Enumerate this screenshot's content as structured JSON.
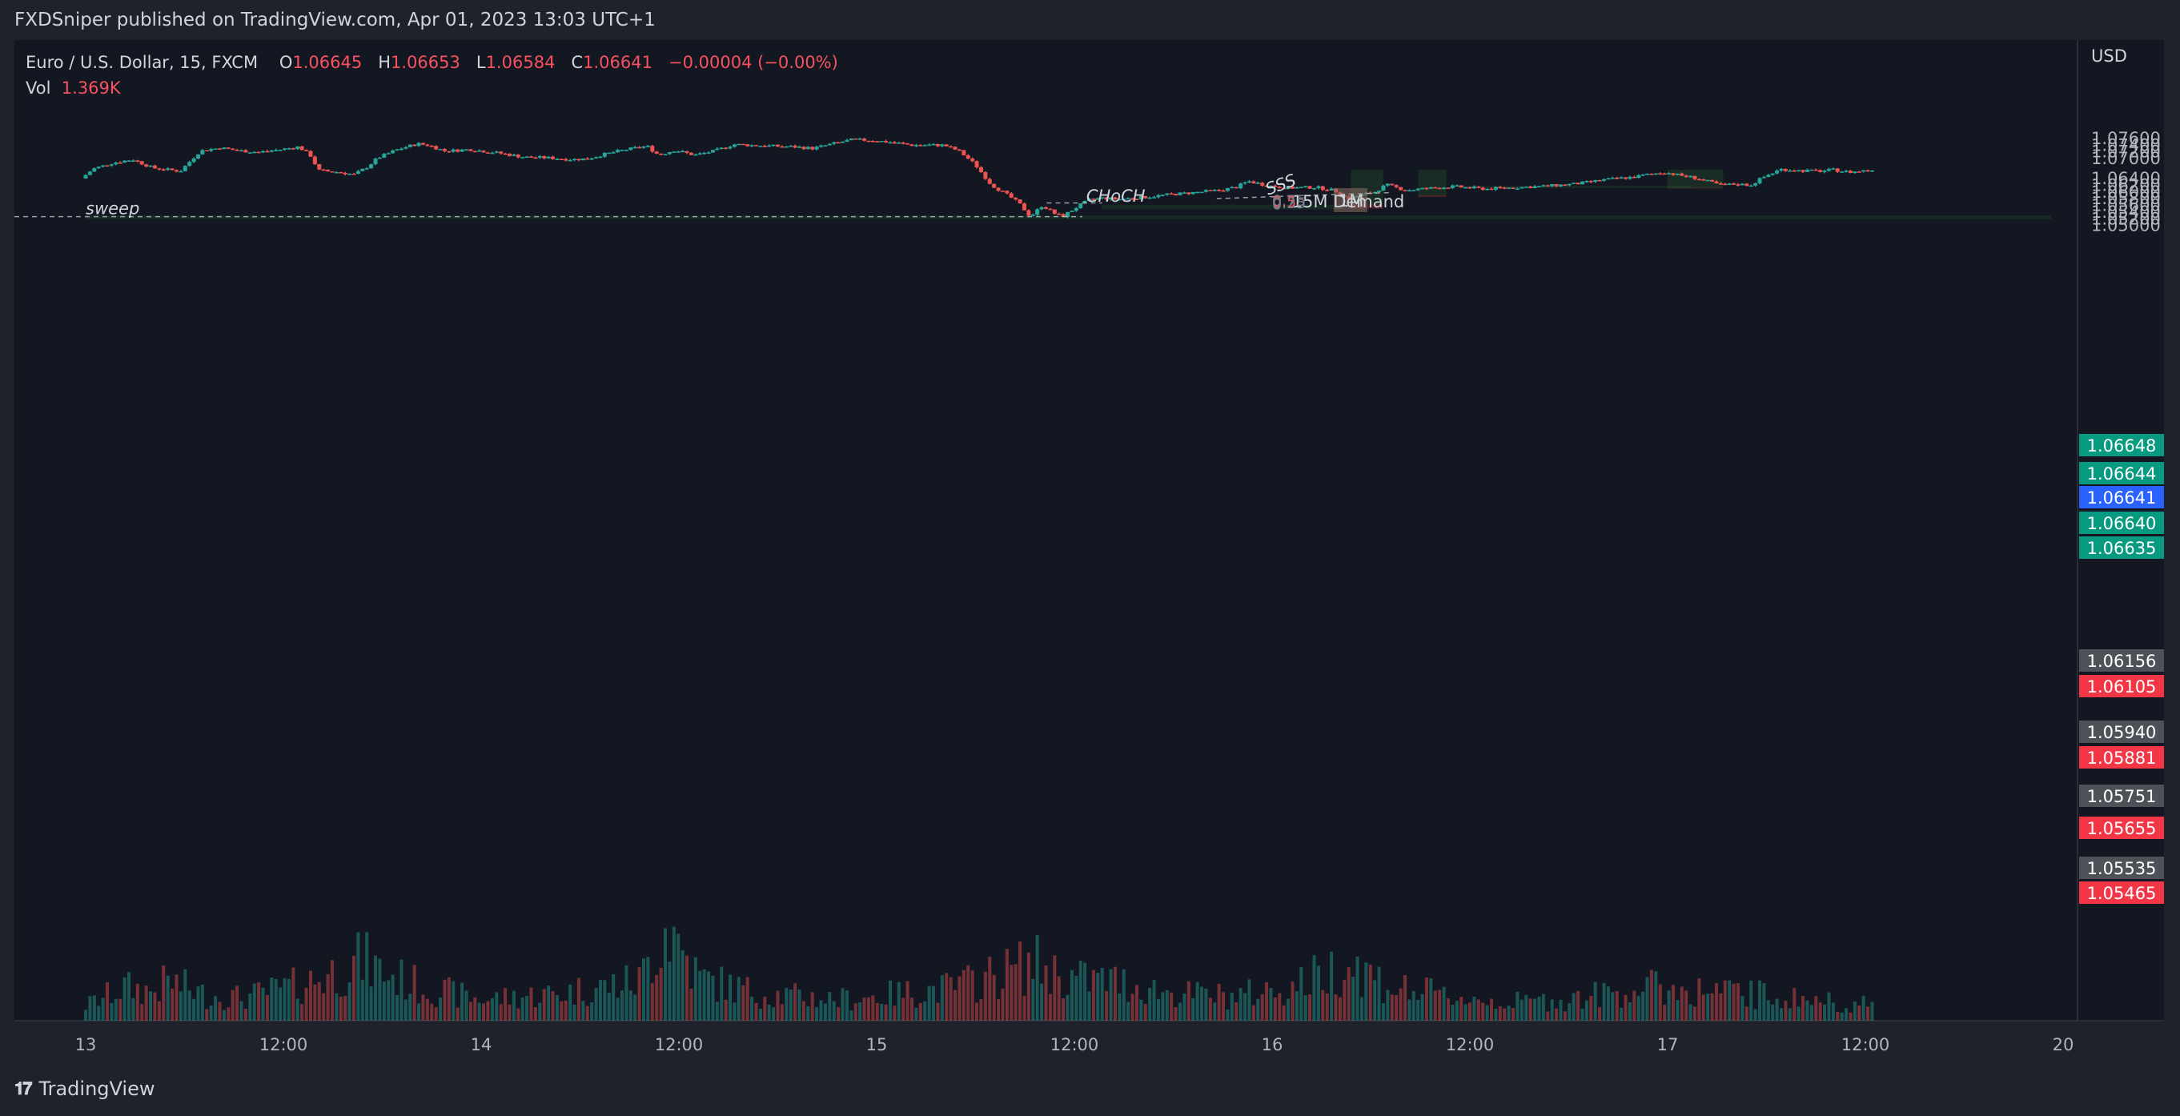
{
  "header": {
    "published": "FXDSniper published on TradingView.com, Apr 01, 2023 13:03 UTC+1"
  },
  "legend": {
    "symbol": "Euro / U.S. Dollar, 15, FXCM",
    "open_label": "O",
    "open": "1.06645",
    "high_label": "H",
    "high": "1.06653",
    "low_label": "L",
    "low": "1.06584",
    "close_label": "C",
    "close": "1.06641",
    "change": "−0.00004 (−0.00%)",
    "vol_label": "Vol",
    "vol": "1.369K"
  },
  "currency": "USD",
  "footer": {
    "brand": "TradingView",
    "logo_icon": "tradingview-logo-icon"
  },
  "colors": {
    "background": "#1f222b",
    "bull": "#26a69a",
    "bear": "#ef5350",
    "zone_green": "#2e7d32",
    "label_green": "#089981",
    "label_red": "#f23645",
    "label_gray": "#4d5158",
    "label_blue": "#2962ff"
  },
  "chart_data": {
    "type": "candlestick",
    "symbol": "EURUSD",
    "timeframe": "15",
    "ylim": [
      1.049,
      1.0778
    ],
    "y_ticks": [
      "1.07600",
      "1.07400",
      "1.07200",
      "1.07000",
      "1.06400",
      "1.06200",
      "1.06000",
      "1.05800",
      "1.05600",
      "1.05400",
      "1.05200",
      "1.05000"
    ],
    "x_ticks": [
      "13",
      "12:00",
      "14",
      "12:00",
      "15",
      "12:00",
      "16",
      "12:00",
      "17",
      "12:00",
      "20"
    ],
    "price_path": [
      [
        13.0,
        1.0638
      ],
      [
        13.03,
        1.0667
      ],
      [
        13.08,
        1.0685
      ],
      [
        13.13,
        1.0695
      ],
      [
        13.18,
        1.067
      ],
      [
        13.25,
        1.066
      ],
      [
        13.3,
        1.072
      ],
      [
        13.35,
        1.073
      ],
      [
        13.4,
        1.0721
      ],
      [
        13.45,
        1.0717
      ],
      [
        13.5,
        1.0724
      ],
      [
        13.55,
        1.0733
      ],
      [
        13.58,
        1.0706
      ],
      [
        13.6,
        1.0662
      ],
      [
        13.65,
        1.0657
      ],
      [
        13.69,
        1.065
      ],
      [
        13.72,
        1.067
      ],
      [
        13.75,
        1.07
      ],
      [
        13.8,
        1.0725
      ],
      [
        13.85,
        1.0742
      ],
      [
        13.88,
        1.0737
      ],
      [
        13.92,
        1.072
      ],
      [
        13.98,
        1.0725
      ],
      [
        14.05,
        1.0715
      ],
      [
        14.12,
        1.0702
      ],
      [
        14.18,
        1.07
      ],
      [
        14.24,
        1.0695
      ],
      [
        14.28,
        1.0697
      ],
      [
        14.32,
        1.071
      ],
      [
        14.38,
        1.0725
      ],
      [
        14.43,
        1.0735
      ],
      [
        14.46,
        1.0708
      ],
      [
        14.5,
        1.0723
      ],
      [
        14.55,
        1.0708
      ],
      [
        14.6,
        1.072
      ],
      [
        14.65,
        1.074
      ],
      [
        14.72,
        1.0736
      ],
      [
        14.8,
        1.0733
      ],
      [
        14.85,
        1.0728
      ],
      [
        14.9,
        1.0742
      ],
      [
        14.95,
        1.0754
      ],
      [
        15.0,
        1.0752
      ],
      [
        15.05,
        1.0746
      ],
      [
        15.1,
        1.0738
      ],
      [
        15.18,
        1.0738
      ],
      [
        15.22,
        1.072
      ],
      [
        15.26,
        1.068
      ],
      [
        15.3,
        1.062
      ],
      [
        15.34,
        1.059
      ],
      [
        15.37,
        1.0565
      ],
      [
        15.4,
        1.0524
      ],
      [
        15.43,
        1.0558
      ],
      [
        15.46,
        1.0534
      ],
      [
        15.48,
        1.0524
      ],
      [
        15.52,
        1.0555
      ],
      [
        15.55,
        1.0575
      ],
      [
        15.58,
        1.058
      ],
      [
        15.62,
        1.0576
      ],
      [
        15.68,
        1.0581
      ],
      [
        15.75,
        1.059
      ],
      [
        15.82,
        1.0597
      ],
      [
        15.88,
        1.0603
      ],
      [
        15.92,
        1.0612
      ],
      [
        15.95,
        1.063
      ],
      [
        16.0,
        1.0617
      ],
      [
        16.05,
        1.061
      ],
      [
        16.12,
        1.0612
      ],
      [
        16.17,
        1.0602
      ],
      [
        16.2,
        1.0578
      ],
      [
        16.24,
        1.059
      ],
      [
        16.27,
        1.0598
      ],
      [
        16.3,
        1.0619
      ],
      [
        16.35,
        1.0603
      ],
      [
        16.4,
        1.0608
      ],
      [
        16.47,
        1.0614
      ],
      [
        16.55,
        1.0607
      ],
      [
        16.62,
        1.0611
      ],
      [
        16.7,
        1.0615
      ],
      [
        16.78,
        1.0622
      ],
      [
        16.85,
        1.0634
      ],
      [
        16.9,
        1.064
      ],
      [
        16.93,
        1.0643
      ],
      [
        16.95,
        1.0648
      ],
      [
        17.0,
        1.0657
      ],
      [
        17.04,
        1.0648
      ],
      [
        17.08,
        1.064
      ],
      [
        17.11,
        1.063
      ],
      [
        17.15,
        1.0617
      ],
      [
        17.18,
        1.0622
      ],
      [
        17.22,
        1.0618
      ],
      [
        17.25,
        1.064
      ],
      [
        17.28,
        1.0657
      ],
      [
        17.3,
        1.0666
      ],
      [
        17.34,
        1.0662
      ],
      [
        17.4,
        1.066
      ],
      [
        17.43,
        1.0664
      ],
      [
        17.47,
        1.0657
      ],
      [
        17.49,
        1.0659
      ],
      [
        17.52,
        1.0663
      ]
    ],
    "volume_profile": [
      [
        13.0,
        0.25
      ],
      [
        13.1,
        0.55
      ],
      [
        13.17,
        0.48
      ],
      [
        13.21,
        0.65
      ],
      [
        13.3,
        0.42
      ],
      [
        13.4,
        0.38
      ],
      [
        13.55,
        0.6
      ],
      [
        13.65,
        0.85
      ],
      [
        13.7,
        1.0
      ],
      [
        13.75,
        0.8
      ],
      [
        13.85,
        0.55
      ],
      [
        14.0,
        0.35
      ],
      [
        14.2,
        0.45
      ],
      [
        14.4,
        0.65
      ],
      [
        14.47,
        1.6
      ],
      [
        14.55,
        0.7
      ],
      [
        14.7,
        0.45
      ],
      [
        14.9,
        0.35
      ],
      [
        15.0,
        0.4
      ],
      [
        15.2,
        0.55
      ],
      [
        15.3,
        0.75
      ],
      [
        15.4,
        0.95
      ],
      [
        15.48,
        0.7
      ],
      [
        15.6,
        0.65
      ],
      [
        15.75,
        0.45
      ],
      [
        15.9,
        0.4
      ],
      [
        16.05,
        0.55
      ],
      [
        16.12,
        0.75
      ],
      [
        16.2,
        0.95
      ],
      [
        16.3,
        0.55
      ],
      [
        16.45,
        0.4
      ],
      [
        16.6,
        0.3
      ],
      [
        16.75,
        0.35
      ],
      [
        16.85,
        0.45
      ],
      [
        16.95,
        0.55
      ],
      [
        17.05,
        0.5
      ],
      [
        17.2,
        0.45
      ],
      [
        17.35,
        0.35
      ],
      [
        17.52,
        0.25
      ]
    ],
    "zones": [
      {
        "type": "sweep",
        "x": [
          13.0,
          18.0
        ],
        "y": [
          1.0517,
          1.0527
        ],
        "label": "sweep"
      },
      {
        "type": "15M Demand",
        "x": [
          15.57,
          16.18
        ],
        "y": [
          1.05465,
          1.0559
        ],
        "label": "15M Demand"
      },
      {
        "type": "position",
        "x": [
          16.2,
          16.28
        ],
        "y": [
          1.0561,
          1.0663
        ]
      },
      {
        "type": "position",
        "x": [
          16.37,
          16.44
        ],
        "y": [
          1.0588,
          1.0663
        ]
      },
      {
        "type": "zone",
        "x": [
          16.47,
          17.06
        ],
        "y": [
          1.06105,
          1.06156
        ]
      },
      {
        "type": "position",
        "x": [
          17.0,
          17.14
        ],
        "y": [
          1.06105,
          1.06635
        ]
      }
    ],
    "annotations": [
      {
        "text": "sweep",
        "x": 13.0,
        "y": 1.0531
      },
      {
        "text": "CHoCH",
        "x": 15.53,
        "y": 1.0569
      },
      {
        "text": "SSS",
        "x": 15.99,
        "y": 1.0588
      },
      {
        "text": "1M",
        "x": 16.18,
        "y": 1.0571
      },
      {
        "text": "15M Demand",
        "x": 16.05,
        "y": 1.0552
      },
      {
        "text": "0.75",
        "x": 16.0,
        "y": 1.0557
      },
      {
        "text": "0.5",
        "x": 16.0,
        "y": 1.0553
      },
      {
        "text": "0.25",
        "x": 16.0,
        "y": 1.0549
      },
      {
        "text": "0",
        "x": 16.0,
        "y": 1.0546
      }
    ],
    "price_labels": [
      {
        "value": "1.06648",
        "type": "green"
      },
      {
        "value": "1.06644",
        "type": "green"
      },
      {
        "value": "1.06641",
        "type": "blue"
      },
      {
        "value": "1.06640",
        "type": "green"
      },
      {
        "value": "1.06635",
        "type": "green"
      },
      {
        "value": "1.06156",
        "type": "gray"
      },
      {
        "value": "1.06105",
        "type": "red"
      },
      {
        "value": "1.05940",
        "type": "gray"
      },
      {
        "value": "1.05881",
        "type": "red"
      },
      {
        "value": "1.05751",
        "type": "gray"
      },
      {
        "value": "1.05655",
        "type": "red"
      },
      {
        "value": "1.05535",
        "type": "gray"
      },
      {
        "value": "1.05465",
        "type": "red"
      }
    ]
  }
}
